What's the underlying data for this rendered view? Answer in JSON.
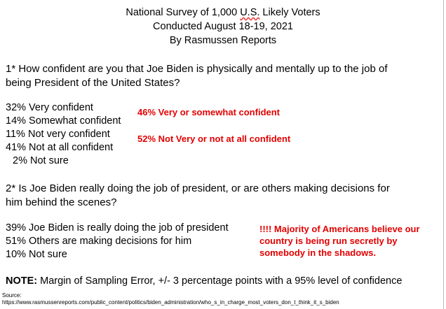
{
  "header": {
    "line1_pre": "National Survey of 1,000 ",
    "line1_us": "U.S.",
    "line1_post": " Likely Voters",
    "line2": "Conducted August 18-19, 2021",
    "line3": "By Rasmussen Reports"
  },
  "question1": {
    "line1": "1* How confident are you that Joe Biden is physically and mentally up to the job of",
    "line2": "being President of the United States?",
    "answers": [
      "32% Very confident",
      "14% Somewhat confident",
      "11% Not very confident",
      "41% Not at all confident",
      "2% Not sure"
    ],
    "summary_confident": "46% Very or somewhat confident",
    "summary_not_confident": "52% Not Very or not at all confident"
  },
  "question2": {
    "line1": "2* Is Joe Biden really doing the job of president, or are others making decisions for",
    "line2": "him behind the scenes?",
    "answers": [
      "39% Joe Biden is really doing the job of president",
      "51% Others are making decisions for him",
      "10% Not sure"
    ],
    "comment_lines": [
      "!!!! Majority of Americans believe our",
      "country is being run secretly by",
      "somebody in the shadows."
    ]
  },
  "note": {
    "label": "NOTE:",
    "text": " Margin of Sampling Error, +/- 3 percentage points with a 95% level of confidence"
  },
  "source": {
    "label": "Source:",
    "url": "https://www.rasmussenreports.com/public_content/politics/biden_administration/who_s_in_charge_most_voters_don_t_think_it_s_biden"
  },
  "colors": {
    "highlight": "#e30000",
    "text": "#000000"
  }
}
